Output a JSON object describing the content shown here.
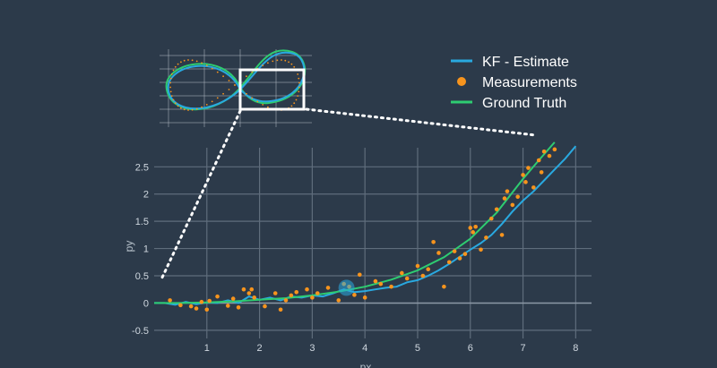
{
  "colors": {
    "background": "#2c3a4a",
    "estimate": "#29a9e0",
    "measurements": "#f7941d",
    "ground_truth": "#2ecc71",
    "grid": "#5f6d7c",
    "zoom_box": "#ffffff"
  },
  "legend": {
    "placement": "top-right",
    "estimate_label": "KF - Estimate",
    "measurements_label": "Measurements",
    "ground_truth_label": "Ground Truth"
  },
  "chart_data": {
    "type": "scatter",
    "xlabel": "px",
    "ylabel": "py",
    "xlim": [
      0,
      8.3
    ],
    "ylim": [
      -0.65,
      2.85
    ],
    "x_ticks": [
      1,
      2,
      3,
      4,
      5,
      6,
      7,
      8
    ],
    "y_ticks": [
      -0.5,
      0,
      0.5,
      1,
      1.5,
      2,
      2.5
    ],
    "grid": true,
    "robot_position": {
      "x": 3.65,
      "y": 0.28
    },
    "series": [
      {
        "name": "KF - Estimate",
        "type": "line",
        "points": [
          [
            0,
            0
          ],
          [
            0.2,
            0.0
          ],
          [
            0.4,
            -0.03
          ],
          [
            0.6,
            0.02
          ],
          [
            0.8,
            -0.02
          ],
          [
            1.0,
            0.01
          ],
          [
            1.2,
            0.0
          ],
          [
            1.4,
            0.05
          ],
          [
            1.6,
            0.0
          ],
          [
            1.8,
            0.12
          ],
          [
            2.0,
            0.06
          ],
          [
            2.2,
            0.1
          ],
          [
            2.4,
            0.05
          ],
          [
            2.6,
            0.12
          ],
          [
            2.8,
            0.1
          ],
          [
            3.0,
            0.14
          ],
          [
            3.2,
            0.12
          ],
          [
            3.4,
            0.18
          ],
          [
            3.6,
            0.25
          ],
          [
            3.8,
            0.2
          ],
          [
            4.0,
            0.22
          ],
          [
            4.2,
            0.25
          ],
          [
            4.4,
            0.28
          ],
          [
            4.6,
            0.3
          ],
          [
            4.8,
            0.38
          ],
          [
            5.0,
            0.42
          ],
          [
            5.2,
            0.5
          ],
          [
            5.4,
            0.6
          ],
          [
            5.6,
            0.72
          ],
          [
            5.8,
            0.85
          ],
          [
            6.0,
            0.98
          ],
          [
            6.2,
            1.1
          ],
          [
            6.4,
            1.25
          ],
          [
            6.6,
            1.45
          ],
          [
            6.8,
            1.68
          ],
          [
            7.0,
            1.88
          ],
          [
            7.2,
            2.05
          ],
          [
            7.4,
            2.25
          ],
          [
            7.6,
            2.45
          ],
          [
            7.8,
            2.65
          ],
          [
            8.0,
            2.88
          ]
        ]
      },
      {
        "name": "Ground Truth",
        "type": "line",
        "points": [
          [
            0,
            0
          ],
          [
            0.5,
            0.0
          ],
          [
            1.0,
            0.01
          ],
          [
            1.5,
            0.03
          ],
          [
            2.0,
            0.06
          ],
          [
            2.5,
            0.09
          ],
          [
            3.0,
            0.14
          ],
          [
            3.5,
            0.21
          ],
          [
            4.0,
            0.3
          ],
          [
            4.5,
            0.43
          ],
          [
            5.0,
            0.6
          ],
          [
            5.5,
            0.84
          ],
          [
            6.0,
            1.18
          ],
          [
            6.5,
            1.66
          ],
          [
            7.0,
            2.28
          ],
          [
            7.3,
            2.62
          ],
          [
            7.6,
            2.95
          ]
        ]
      },
      {
        "name": "Measurements",
        "type": "scatter",
        "points": [
          [
            0.3,
            0.05
          ],
          [
            0.5,
            -0.04
          ],
          [
            0.7,
            -0.06
          ],
          [
            0.8,
            -0.1
          ],
          [
            0.9,
            0.02
          ],
          [
            1.0,
            -0.12
          ],
          [
            1.05,
            0.04
          ],
          [
            1.2,
            0.12
          ],
          [
            1.4,
            -0.05
          ],
          [
            1.5,
            0.08
          ],
          [
            1.6,
            -0.08
          ],
          [
            1.7,
            0.25
          ],
          [
            1.8,
            0.18
          ],
          [
            1.85,
            0.25
          ],
          [
            1.9,
            0.1
          ],
          [
            2.1,
            -0.06
          ],
          [
            2.3,
            0.18
          ],
          [
            2.4,
            -0.12
          ],
          [
            2.5,
            0.05
          ],
          [
            2.6,
            0.14
          ],
          [
            2.7,
            0.2
          ],
          [
            2.9,
            0.25
          ],
          [
            3.0,
            0.1
          ],
          [
            3.1,
            0.18
          ],
          [
            3.3,
            0.28
          ],
          [
            3.5,
            0.05
          ],
          [
            3.6,
            0.35
          ],
          [
            3.7,
            0.3
          ],
          [
            3.8,
            0.15
          ],
          [
            3.9,
            0.52
          ],
          [
            4.0,
            0.1
          ],
          [
            4.2,
            0.4
          ],
          [
            4.3,
            0.35
          ],
          [
            4.5,
            0.3
          ],
          [
            4.7,
            0.55
          ],
          [
            4.8,
            0.45
          ],
          [
            5.0,
            0.68
          ],
          [
            5.1,
            0.5
          ],
          [
            5.2,
            0.62
          ],
          [
            5.3,
            1.12
          ],
          [
            5.4,
            0.92
          ],
          [
            5.5,
            0.3
          ],
          [
            5.6,
            0.75
          ],
          [
            5.7,
            0.95
          ],
          [
            5.8,
            0.82
          ],
          [
            5.9,
            0.9
          ],
          [
            6.0,
            1.38
          ],
          [
            6.05,
            1.3
          ],
          [
            6.1,
            1.4
          ],
          [
            6.2,
            0.98
          ],
          [
            6.3,
            1.2
          ],
          [
            6.4,
            1.55
          ],
          [
            6.5,
            1.72
          ],
          [
            6.6,
            1.25
          ],
          [
            6.65,
            1.92
          ],
          [
            6.7,
            2.05
          ],
          [
            6.8,
            1.8
          ],
          [
            6.9,
            1.95
          ],
          [
            7.0,
            2.35
          ],
          [
            7.05,
            2.22
          ],
          [
            7.1,
            2.48
          ],
          [
            7.2,
            2.12
          ],
          [
            7.3,
            2.62
          ],
          [
            7.35,
            2.4
          ],
          [
            7.4,
            2.78
          ],
          [
            7.5,
            2.7
          ],
          [
            7.6,
            2.82
          ]
        ]
      }
    ]
  }
}
